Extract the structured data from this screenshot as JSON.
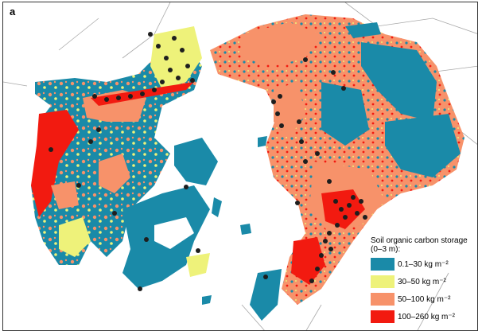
{
  "figure": {
    "panel_label": "a"
  },
  "legend": {
    "title": "Soil organic carbon storage (0–3 m):",
    "items": [
      {
        "label": "0.1–30 kg m⁻²",
        "color": "#1a8aa8"
      },
      {
        "label": "30–50 kg m⁻²",
        "color": "#eef27a"
      },
      {
        "label": "50–100 kg m⁻²",
        "color": "#f7926a"
      },
      {
        "label": "100–260 kg m⁻²",
        "color": "#f21a10"
      }
    ]
  },
  "colors": {
    "sample_point": "#1e1e1e",
    "coastline": "#8a8a8a",
    "background": "#ffffff"
  }
}
